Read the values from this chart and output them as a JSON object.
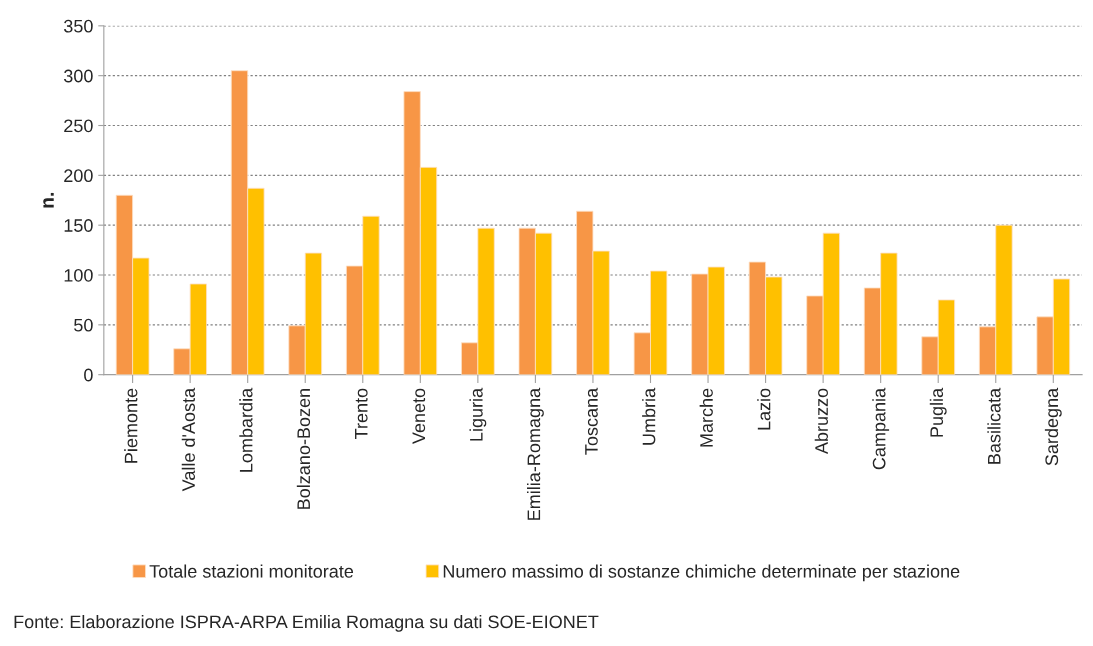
{
  "chart_data": {
    "type": "bar",
    "ylabel": "n.",
    "categories": [
      "Piemonte",
      "Valle d'Aosta",
      "Lombardia",
      "Bolzano-Bozen",
      "Trento",
      "Veneto",
      "Liguria",
      "Emilia-Romagna",
      "Toscana",
      "Umbria",
      "Marche",
      "Lazio",
      "Abruzzo",
      "Campania",
      "Puglia",
      "Basilicata",
      "Sardegna"
    ],
    "series": [
      {
        "name": "Totale stazioni monitorate",
        "color": "#f79646",
        "values": [
          180,
          26,
          305,
          49,
          109,
          284,
          32,
          147,
          164,
          42,
          101,
          113,
          79,
          87,
          38,
          48,
          58
        ]
      },
      {
        "name": "Numero massimo di sostanze chimiche determinate per stazione",
        "color": "#ffc000",
        "values": [
          117,
          91,
          187,
          122,
          159,
          208,
          147,
          142,
          124,
          104,
          108,
          98,
          142,
          122,
          75,
          150,
          96
        ]
      }
    ],
    "ylim": [
      0,
      350
    ],
    "yticks": [
      0,
      50,
      100,
      150,
      200,
      250,
      300,
      350
    ],
    "grid": "y",
    "legend": "bottom",
    "annotations": [
      "Fonte: Elaborazione ISPRA-ARPA Emilia Romagna su dati SOE-EIONET"
    ]
  }
}
